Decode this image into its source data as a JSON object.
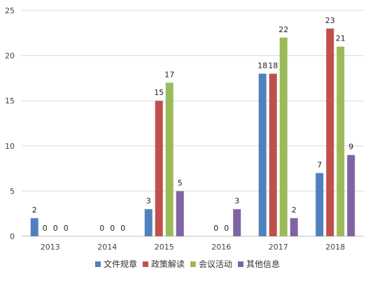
{
  "chart_data": {
    "type": "bar",
    "categories": [
      "2013",
      "2014",
      "2015",
      "2016",
      "2017",
      "2018"
    ],
    "series": [
      {
        "name": "文件规章",
        "color": "#4F81BD",
        "values": [
          2,
          0,
          3,
          0,
          18,
          7
        ]
      },
      {
        "name": "政策解读",
        "color": "#C0504D",
        "values": [
          0,
          0,
          15,
          0,
          18,
          23
        ]
      },
      {
        "name": "会议活动",
        "color": "#9BBB59",
        "values": [
          0,
          0,
          17,
          0,
          22,
          21
        ]
      },
      {
        "name": "其他信息",
        "color": "#8064A2",
        "values": [
          0,
          0,
          5,
          3,
          2,
          9
        ]
      }
    ],
    "data_labels": [
      [
        "2",
        "",
        "3",
        "",
        "18",
        "7"
      ],
      [
        "0",
        "0",
        "15",
        "0",
        "18",
        "23"
      ],
      [
        "0",
        "0",
        "17",
        "0",
        "22",
        "21"
      ],
      [
        "0",
        "0",
        "5",
        "3",
        "2",
        "9"
      ]
    ],
    "y_ticks": [
      0,
      5,
      10,
      15,
      20,
      25
    ],
    "ylim": [
      0,
      25
    ],
    "grid": true,
    "legend_position": "bottom"
  }
}
